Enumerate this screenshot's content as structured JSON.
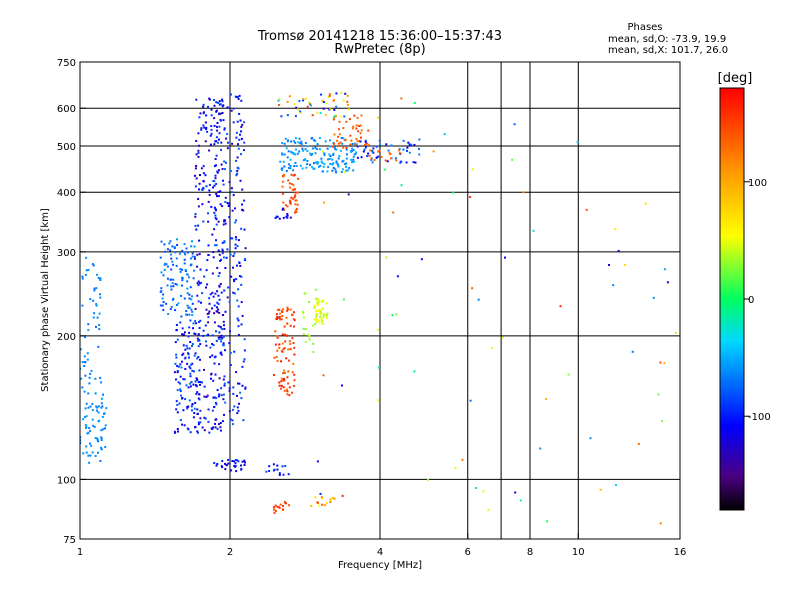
{
  "chart_data": {
    "type": "scatter",
    "title_line1": "Tromsø 20141218 15:36:00–15:37:43",
    "title_line2": "RwPretec (8p)",
    "xlabel": "Frequency [MHz]",
    "ylabel": "Stationary phase Virtual Height [km]",
    "x_scale": "log",
    "y_scale": "log",
    "xlim": [
      1,
      16
    ],
    "ylim": [
      75,
      750
    ],
    "x_ticks": [
      1,
      2,
      4,
      6,
      8,
      10,
      16
    ],
    "y_ticks": [
      75,
      100,
      200,
      300,
      400,
      500,
      600,
      750
    ],
    "x_grid": [
      2,
      4,
      6,
      7,
      8,
      10
    ],
    "y_grid": [
      100,
      200,
      300,
      400,
      500,
      600
    ],
    "grid": true,
    "info": {
      "heading": "Phases",
      "line1": "mean, sd,O: -73.9, 19.9",
      "line2": "mean, sd,X: 101.7, 26.0"
    },
    "colorbar": {
      "label": "[deg]",
      "ticks": [
        100,
        0,
        -100
      ],
      "range": [
        -180,
        180
      ],
      "placement": "right"
    },
    "clusters": [
      {
        "f": [
          1.0,
          1.13
        ],
        "h": [
          108,
          160
        ],
        "n": 70,
        "phase": [
          -70,
          -55
        ]
      },
      {
        "f": [
          1.0,
          1.1
        ],
        "h": [
          160,
          300
        ],
        "n": 50,
        "phase": [
          -75,
          -55
        ]
      },
      {
        "f": [
          1.45,
          1.7
        ],
        "h": [
          220,
          320
        ],
        "n": 110,
        "phase": [
          -90,
          -55
        ]
      },
      {
        "f": [
          1.55,
          1.75
        ],
        "h": [
          125,
          220
        ],
        "n": 130,
        "phase": [
          -120,
          -70
        ]
      },
      {
        "f": [
          1.7,
          1.95
        ],
        "h": [
          125,
          640
        ],
        "n": 260,
        "phase": [
          -140,
          -80
        ]
      },
      {
        "f": [
          1.85,
          2.15
        ],
        "h": [
          130,
          650
        ],
        "n": 230,
        "phase": [
          -130,
          -70
        ]
      },
      {
        "f": [
          1.85,
          2.15
        ],
        "h": [
          104,
          110
        ],
        "n": 30,
        "phase": [
          -130,
          -90
        ]
      },
      {
        "f": [
          2.35,
          2.65
        ],
        "h": [
          102,
          108
        ],
        "n": 14,
        "phase": [
          -120,
          -80
        ]
      },
      {
        "f": [
          2.45,
          2.7
        ],
        "h": [
          150,
          230
        ],
        "n": 90,
        "phase": [
          125,
          175
        ]
      },
      {
        "f": [
          2.55,
          2.75
        ],
        "h": [
          360,
          440
        ],
        "n": 40,
        "phase": [
          130,
          165
        ]
      },
      {
        "f": [
          2.45,
          2.65
        ],
        "h": [
          350,
          370
        ],
        "n": 12,
        "phase": [
          -130,
          -100
        ]
      },
      {
        "f": [
          2.95,
          3.15
        ],
        "h": [
          212,
          240
        ],
        "n": 45,
        "phase": [
          30,
          60
        ]
      },
      {
        "f": [
          2.8,
          3.0
        ],
        "h": [
          180,
          250
        ],
        "n": 20,
        "phase": [
          20,
          40
        ]
      },
      {
        "f": [
          2.5,
          3.6
        ],
        "h": [
          440,
          520
        ],
        "n": 160,
        "phase": [
          -75,
          -45
        ]
      },
      {
        "f": [
          3.2,
          3.8
        ],
        "h": [
          495,
          580
        ],
        "n": 45,
        "phase": [
          120,
          160
        ]
      },
      {
        "f": [
          2.5,
          3.5
        ],
        "h": [
          575,
          650
        ],
        "n": 50,
        "phase": [
          -130,
          160
        ]
      },
      {
        "f": [
          3.6,
          4.8
        ],
        "h": [
          460,
          520
        ],
        "n": 50,
        "phase": [
          -120,
          -60
        ]
      },
      {
        "f": [
          3.8,
          4.4
        ],
        "h": [
          465,
          490
        ],
        "n": 15,
        "phase": [
          125,
          150
        ]
      },
      {
        "f": [
          2.45,
          2.65
        ],
        "h": [
          85,
          90
        ],
        "n": 16,
        "phase": [
          140,
          165
        ]
      },
      {
        "f": [
          2.9,
          3.3
        ],
        "h": [
          88,
          92
        ],
        "n": 16,
        "phase": [
          40,
          150
        ]
      },
      {
        "f": [
          2.9,
          16.0
        ],
        "h": [
          80,
          650
        ],
        "n": 75,
        "phase": [
          -140,
          170
        ]
      }
    ]
  }
}
